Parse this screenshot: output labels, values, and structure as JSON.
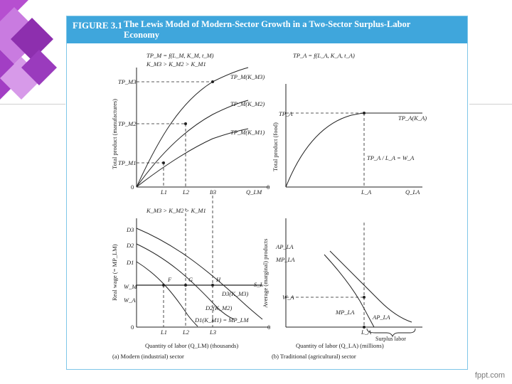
{
  "slide": {
    "footer": "fppt.com"
  },
  "figure": {
    "label": "FIGURE 3.1",
    "title": "The Lewis Model of Modern-Sector Growth in a Two-Sector Surplus-Labor Economy"
  },
  "panel_a_top": {
    "function_label": "TP_M = f(L_M, K_M, t_M)",
    "capital_order": "K_M3 > K_M2 > K_M1",
    "y_axis_label": "Total product (manufactures)",
    "x_axis_label": "Q_LM",
    "origin": "0",
    "x_ticks": [
      "L1",
      "L2",
      "L3"
    ],
    "y_ticks": [
      "TP_M3",
      "TP_M2",
      "TP_M1"
    ],
    "curve_labels": [
      "TP_M(K_M3)",
      "TP_M(K_M2)",
      "TP_M(K_M1)"
    ]
  },
  "panel_b_top": {
    "function_label": "TP_A = f(L_A, K_A, t_A)",
    "y_axis_label": "Total product (food)",
    "x_axis_label": "Q_LA",
    "origin": "0",
    "x_tick": "L_A",
    "y_tick": "TP_A",
    "curve_label": "TP_A(K_A)",
    "annotation": "TP_A / L_A = W_A"
  },
  "panel_a_bottom": {
    "capital_order": "K_M3 > K_M2 > K_M1",
    "y_axis_label": "Real wage (= MP_LM)",
    "x_axis_label": "Quantity of labor (Q_LM) (thousands)",
    "origin": "0",
    "x_ticks": [
      "L1",
      "L2",
      "L3"
    ],
    "y_ticks": [
      "W_M",
      "W_A"
    ],
    "demand_left_labels": [
      "D3",
      "D2",
      "D1"
    ],
    "demand_curve_labels": [
      "D3(K_M3)",
      "D2(K_M2)",
      "D1(K_M1) = MP_LM"
    ],
    "supply_label": "S_L",
    "point_labels": [
      "F",
      "G",
      "H"
    ],
    "caption": "(a) Modern (industrial) sector"
  },
  "panel_b_bottom": {
    "y_axis_label": "Average (marginal) products",
    "x_axis_label": "Quantity of labor (Q_LA) (millions)",
    "origin": "0",
    "x_tick": "L_A",
    "y_ticks": [
      "AP_LA",
      "MP_LA",
      "W_A"
    ],
    "curve_labels": [
      "MP_LA",
      "AP_LA"
    ],
    "brace_label": "Surplus labor",
    "caption": "(b) Traditional (agricultural) sector"
  }
}
